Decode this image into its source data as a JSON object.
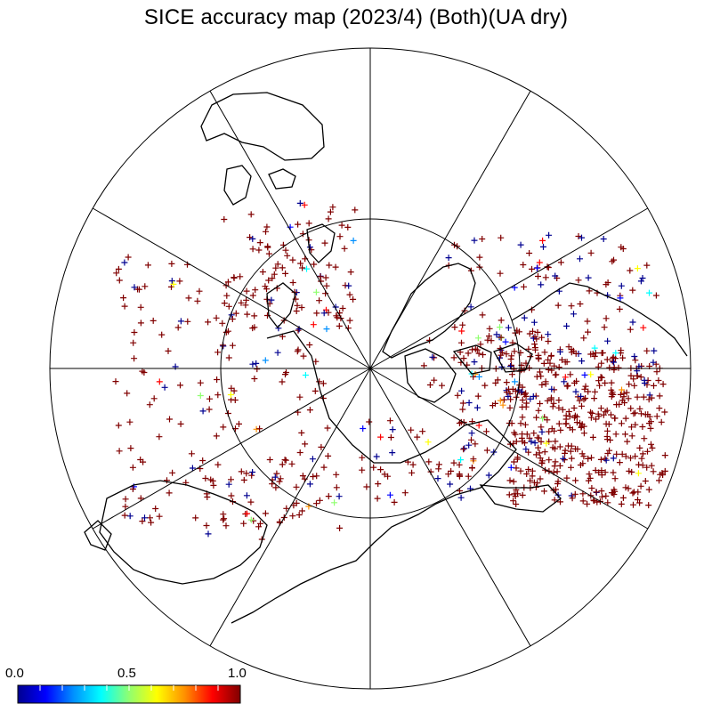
{
  "title": "SICE accuracy map (2023/4) (Both)(UA dry)",
  "colorbar": {
    "min_label": "0.0",
    "mid_label": "0.5",
    "max_label": "1.0",
    "range": [
      0.0,
      1.0
    ],
    "colors": [
      "#000090",
      "#0000ff",
      "#0090ff",
      "#00ffff",
      "#90ff70",
      "#ffff00",
      "#ff9000",
      "#ff0000",
      "#800000"
    ]
  },
  "map": {
    "projection": "north polar stereographic",
    "graticule": "meridians every 30 degrees, one parallel circle",
    "marker": "plus",
    "coastline_color": "#000000",
    "graticule_color": "#000000",
    "dominant_marker_color": "#8b0000"
  }
}
